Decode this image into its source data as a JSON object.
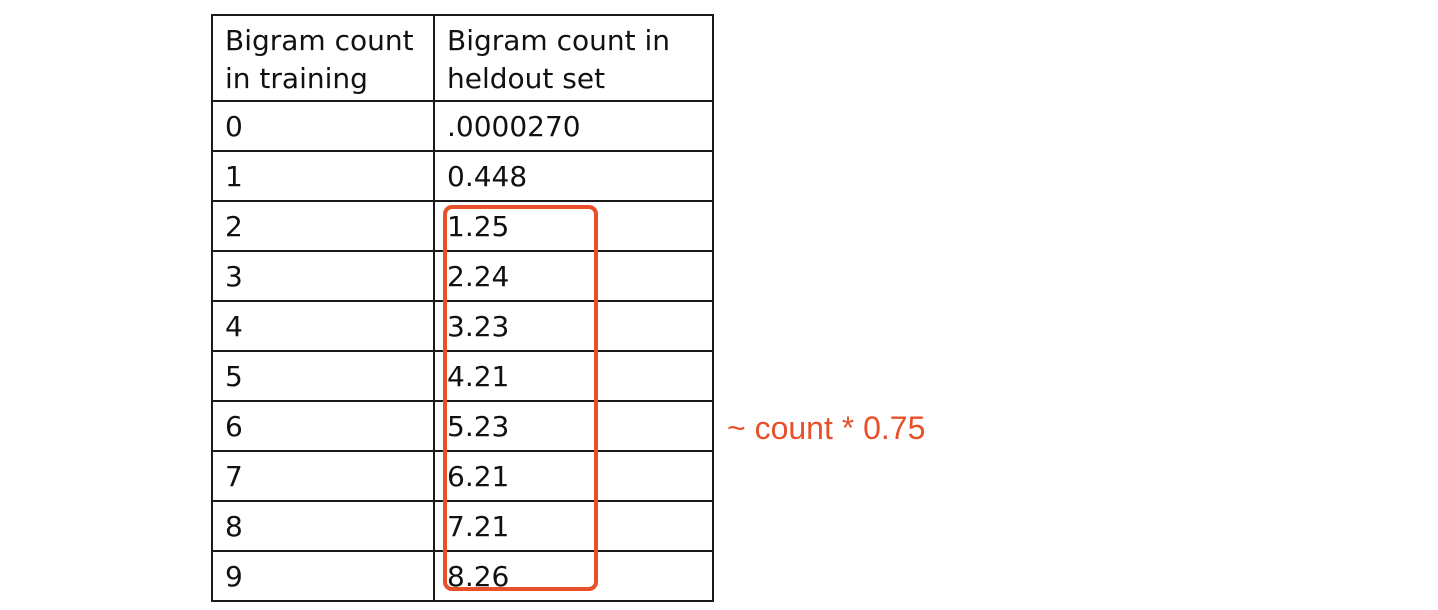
{
  "table": {
    "header": {
      "col1": "Bigram count in training",
      "col2": "Bigram count in heldout set"
    },
    "rows": [
      {
        "training": "0",
        "heldout": ".0000270"
      },
      {
        "training": "1",
        "heldout": "0.448"
      },
      {
        "training": "2",
        "heldout": "1.25"
      },
      {
        "training": "3",
        "heldout": "2.24"
      },
      {
        "training": "4",
        "heldout": "3.23"
      },
      {
        "training": "5",
        "heldout": "4.21"
      },
      {
        "training": "6",
        "heldout": "5.23"
      },
      {
        "training": "7",
        "heldout": "6.21"
      },
      {
        "training": "8",
        "heldout": "7.21"
      },
      {
        "training": "9",
        "heldout": "8.26"
      }
    ]
  },
  "annotation": {
    "text": "~ count * 0.75",
    "color": "#e8502a"
  }
}
